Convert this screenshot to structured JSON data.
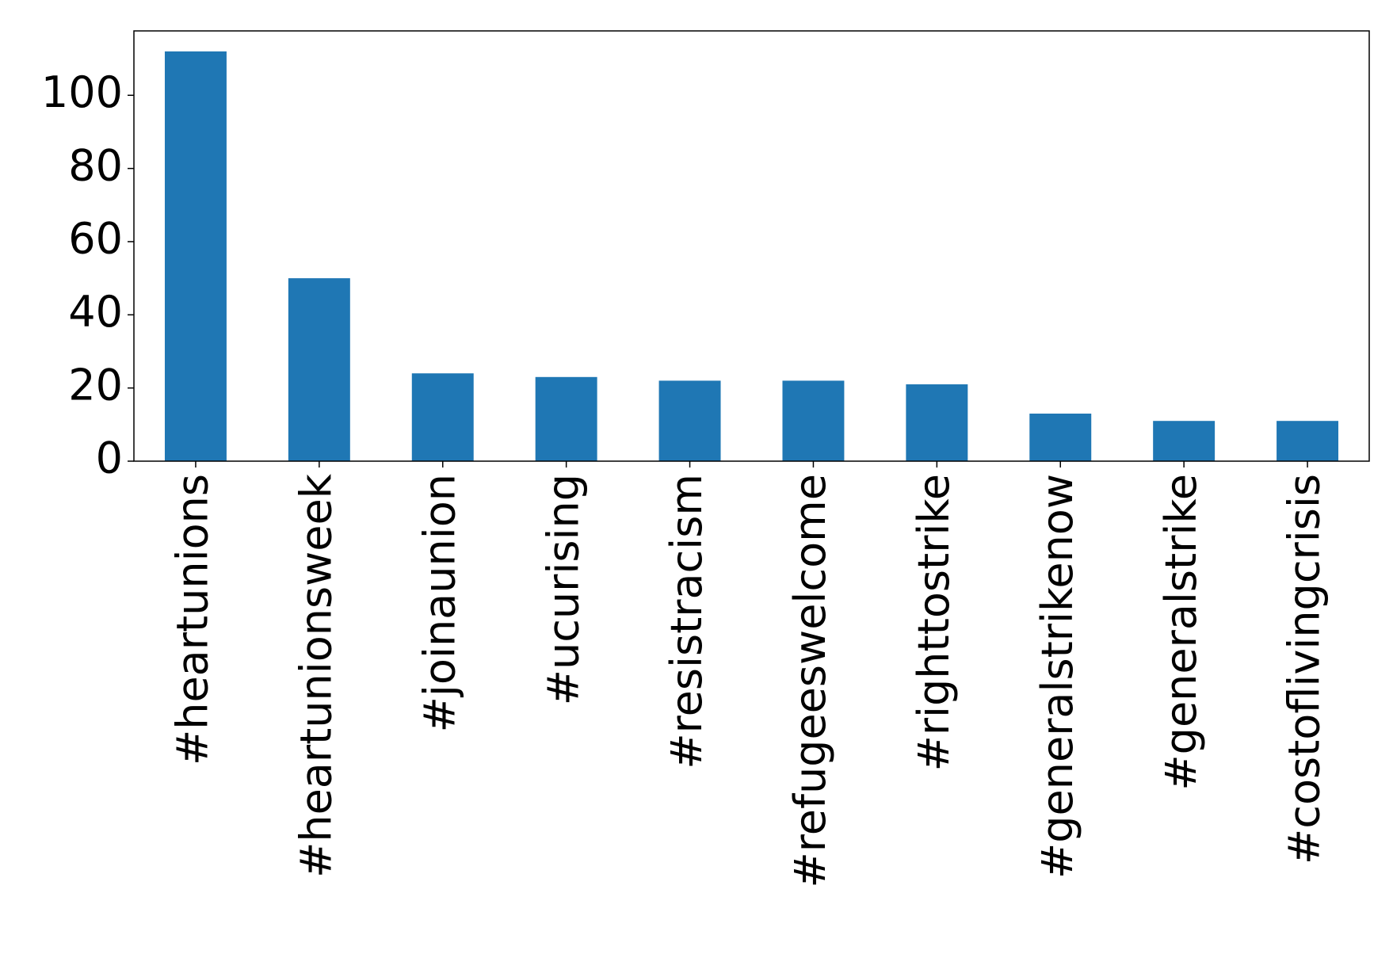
{
  "chart_data": {
    "type": "bar",
    "categories": [
      "#heartunions",
      "#heartunionsweek",
      "#joinaunion",
      "#ucurising",
      "#resistracism",
      "#refugeeswelcome",
      "#righttostrike",
      "#generalstrikenow",
      "#generalstrike",
      "#costoflivingcrisis"
    ],
    "values": [
      112,
      50,
      24,
      23,
      22,
      22,
      21,
      13,
      11,
      11
    ],
    "color": "#1f77b4",
    "ylim": [
      0,
      117.6
    ],
    "yticks": [
      0,
      20,
      40,
      60,
      80,
      100
    ],
    "grid": false
  }
}
